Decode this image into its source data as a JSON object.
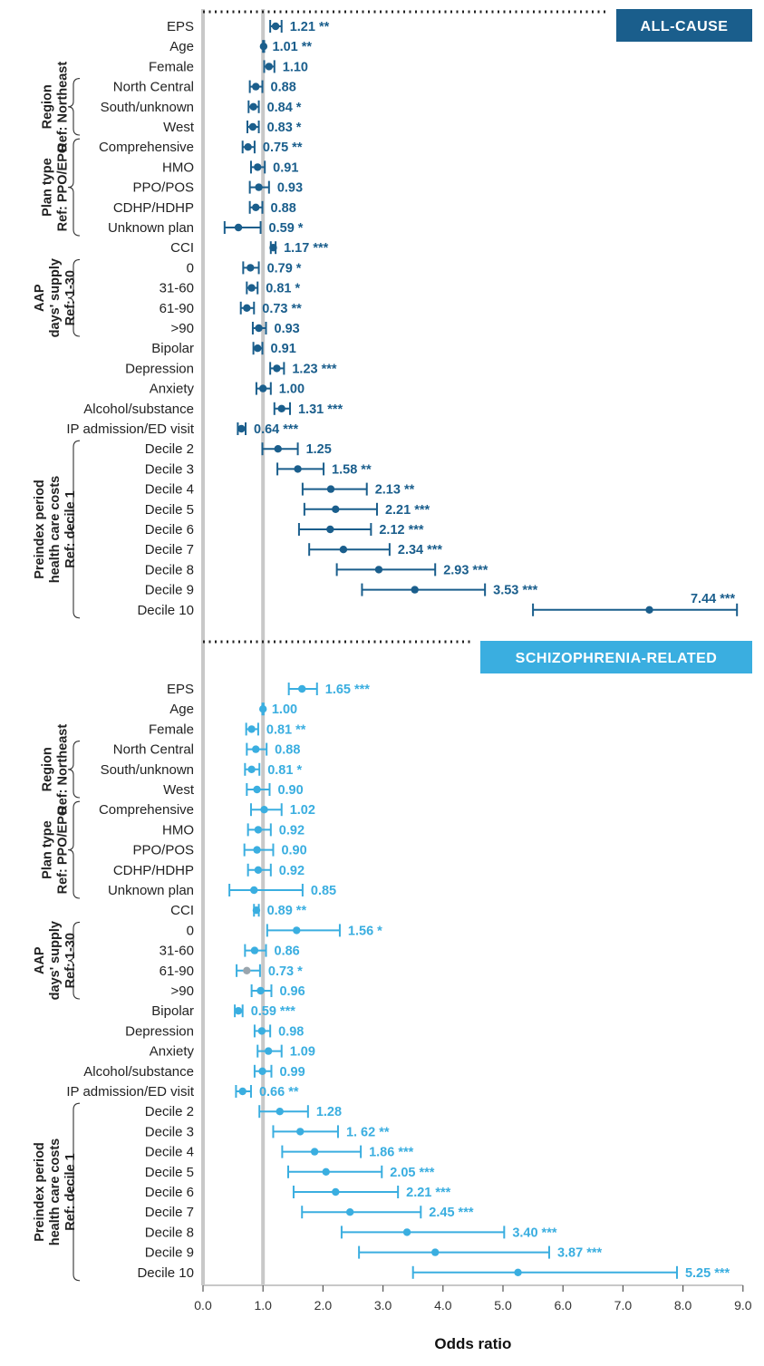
{
  "chart_data": {
    "type": "forest",
    "xlabel": "Odds ratio",
    "xlim": [
      0,
      9
    ],
    "xticks": [
      "0.0",
      "1.0",
      "2.0",
      "3.0",
      "4.0",
      "5.0",
      "6.0",
      "7.0",
      "8.0",
      "9.0"
    ],
    "reference_line": 1.0,
    "colors": {
      "all_cause": "#1a5e8c",
      "schizophrenia_related": "#3aaee0",
      "reference": "#c8c8c8",
      "highlight_point": "#9aa5ad"
    },
    "panels": [
      {
        "title": "ALL-CAUSE",
        "color": "#1a5e8c",
        "groups": [
          {
            "lines": [
              "Region",
              "Ref: Northeast"
            ],
            "first": 3,
            "last": 5
          },
          {
            "lines": [
              "Plan type",
              "Ref: PPO/EPO"
            ],
            "first": 6,
            "last": 10
          },
          {
            "lines": [
              "AAP",
              "days' supply",
              "Ref: 1-30"
            ],
            "first": 12,
            "last": 15
          },
          {
            "lines": [
              "Preindex period",
              "health care costs",
              "Ref: decile 1"
            ],
            "first": 21,
            "last": 29
          }
        ],
        "rows": [
          {
            "label": "EPS",
            "or": 1.21,
            "lo": 1.12,
            "hi": 1.31,
            "text": "1.21 **"
          },
          {
            "label": "Age",
            "or": 1.01,
            "lo": 1.0,
            "hi": 1.02,
            "text": "1.01 **"
          },
          {
            "label": "Female",
            "or": 1.1,
            "lo": 1.02,
            "hi": 1.19,
            "text": "1.10"
          },
          {
            "label": "North Central",
            "or": 0.88,
            "lo": 0.78,
            "hi": 0.99,
            "text": "0.88"
          },
          {
            "label": "South/unknown",
            "or": 0.84,
            "lo": 0.76,
            "hi": 0.93,
            "text": "0.84 *"
          },
          {
            "label": "West",
            "or": 0.83,
            "lo": 0.74,
            "hi": 0.93,
            "text": "0.83 *"
          },
          {
            "label": "Comprehensive",
            "or": 0.75,
            "lo": 0.66,
            "hi": 0.86,
            "text": "0.75 **"
          },
          {
            "label": "HMO",
            "or": 0.91,
            "lo": 0.8,
            "hi": 1.03,
            "text": "0.91"
          },
          {
            "label": "PPO/POS",
            "or": 0.93,
            "lo": 0.78,
            "hi": 1.1,
            "text": "0.93"
          },
          {
            "label": "CDHP/HDHP",
            "or": 0.88,
            "lo": 0.78,
            "hi": 0.99,
            "text": "0.88"
          },
          {
            "label": "Unknown plan",
            "or": 0.59,
            "lo": 0.36,
            "hi": 0.96,
            "text": "0.59 *"
          },
          {
            "label": "CCI",
            "or": 1.17,
            "lo": 1.13,
            "hi": 1.21,
            "text": "1.17 ***"
          },
          {
            "label": "0",
            "or": 0.79,
            "lo": 0.67,
            "hi": 0.93,
            "text": "0.79 *"
          },
          {
            "label": "31-60",
            "or": 0.81,
            "lo": 0.73,
            "hi": 0.91,
            "text": "0.81 *"
          },
          {
            "label": "61-90",
            "or": 0.73,
            "lo": 0.63,
            "hi": 0.85,
            "text": "0.73 **"
          },
          {
            "label": ">90",
            "or": 0.93,
            "lo": 0.83,
            "hi": 1.05,
            "text": "0.93"
          },
          {
            "label": "Bipolar",
            "or": 0.91,
            "lo": 0.84,
            "hi": 0.99,
            "text": "0.91"
          },
          {
            "label": "Depression",
            "or": 1.23,
            "lo": 1.12,
            "hi": 1.35,
            "text": "1.23 ***"
          },
          {
            "label": "Anxiety",
            "or": 1.0,
            "lo": 0.89,
            "hi": 1.13,
            "text": "1.00"
          },
          {
            "label": "Alcohol/substance",
            "or": 1.31,
            "lo": 1.19,
            "hi": 1.45,
            "text": "1.31 ***"
          },
          {
            "label": "IP admission/ED visit",
            "or": 0.64,
            "lo": 0.58,
            "hi": 0.71,
            "text": "0.64 ***"
          },
          {
            "label": "Decile 2",
            "or": 1.25,
            "lo": 0.99,
            "hi": 1.58,
            "text": "1.25"
          },
          {
            "label": "Decile 3",
            "or": 1.58,
            "lo": 1.24,
            "hi": 2.01,
            "text": "1.58 **"
          },
          {
            "label": "Decile 4",
            "or": 2.13,
            "lo": 1.66,
            "hi": 2.73,
            "text": "2.13 **"
          },
          {
            "label": "Decile 5",
            "or": 2.21,
            "lo": 1.69,
            "hi": 2.9,
            "text": "2.21 ***"
          },
          {
            "label": "Decile 6",
            "or": 2.12,
            "lo": 1.6,
            "hi": 2.8,
            "text": "2.12 ***"
          },
          {
            "label": "Decile 7",
            "or": 2.34,
            "lo": 1.77,
            "hi": 3.11,
            "text": "2.34 ***"
          },
          {
            "label": "Decile 8",
            "or": 2.93,
            "lo": 2.23,
            "hi": 3.87,
            "text": "2.93 ***"
          },
          {
            "label": "Decile 9",
            "or": 3.53,
            "lo": 2.65,
            "hi": 4.7,
            "text": "3.53 ***"
          },
          {
            "label": "Decile 10",
            "or": 7.44,
            "lo": 5.5,
            "hi": 8.9,
            "text": "7.44 ***"
          }
        ]
      },
      {
        "title": "SCHIZOPHRENIA-RELATED",
        "color": "#3aaee0",
        "groups": [
          {
            "lines": [
              "Region",
              "Ref: Northeast"
            ],
            "first": 3,
            "last": 5
          },
          {
            "lines": [
              "Plan type",
              "Ref: PPO/EPO"
            ],
            "first": 6,
            "last": 10
          },
          {
            "lines": [
              "AAP",
              "days' supply",
              "Ref: 1-30"
            ],
            "first": 12,
            "last": 15
          },
          {
            "lines": [
              "Preindex period",
              "health care costs",
              "Ref: decile 1"
            ],
            "first": 21,
            "last": 29
          }
        ],
        "rows": [
          {
            "label": "EPS",
            "or": 1.65,
            "lo": 1.43,
            "hi": 1.9,
            "text": "1.65 ***"
          },
          {
            "label": "Age",
            "or": 1.0,
            "lo": 0.99,
            "hi": 1.01,
            "text": "1.00"
          },
          {
            "label": "Female",
            "or": 0.81,
            "lo": 0.72,
            "hi": 0.92,
            "text": "0.81 **"
          },
          {
            "label": "North Central",
            "or": 0.88,
            "lo": 0.73,
            "hi": 1.06,
            "text": "0.88"
          },
          {
            "label": "South/unknown",
            "or": 0.81,
            "lo": 0.7,
            "hi": 0.94,
            "text": "0.81 *"
          },
          {
            "label": "West",
            "or": 0.9,
            "lo": 0.73,
            "hi": 1.11,
            "text": "0.90"
          },
          {
            "label": "Comprehensive",
            "or": 1.02,
            "lo": 0.8,
            "hi": 1.31,
            "text": "1.02"
          },
          {
            "label": "HMO",
            "or": 0.92,
            "lo": 0.75,
            "hi": 1.13,
            "text": "0.92"
          },
          {
            "label": "PPO/POS",
            "or": 0.9,
            "lo": 0.69,
            "hi": 1.17,
            "text": "0.90"
          },
          {
            "label": "CDHP/HDHP",
            "or": 0.92,
            "lo": 0.75,
            "hi": 1.13,
            "text": "0.92"
          },
          {
            "label": "Unknown plan",
            "or": 0.85,
            "lo": 0.44,
            "hi": 1.66,
            "text": "0.85"
          },
          {
            "label": "CCI",
            "or": 0.89,
            "lo": 0.85,
            "hi": 0.93,
            "text": "0.89 **"
          },
          {
            "label": "0",
            "or": 1.56,
            "lo": 1.07,
            "hi": 2.28,
            "text": "1.56 *"
          },
          {
            "label": "31-60",
            "or": 0.86,
            "lo": 0.7,
            "hi": 1.05,
            "text": "0.86"
          },
          {
            "label": "61-90",
            "or": 0.73,
            "lo": 0.56,
            "hi": 0.95,
            "text": "0.73 *",
            "highlight": true
          },
          {
            "label": ">90",
            "or": 0.96,
            "lo": 0.81,
            "hi": 1.14,
            "text": "0.96"
          },
          {
            "label": "Bipolar",
            "or": 0.59,
            "lo": 0.53,
            "hi": 0.66,
            "text": "0.59 ***"
          },
          {
            "label": "Depression",
            "or": 0.98,
            "lo": 0.86,
            "hi": 1.12,
            "text": "0.98"
          },
          {
            "label": "Anxiety",
            "or": 1.09,
            "lo": 0.91,
            "hi": 1.31,
            "text": "1.09"
          },
          {
            "label": "Alcohol/substance",
            "or": 0.99,
            "lo": 0.86,
            "hi": 1.14,
            "text": "0.99"
          },
          {
            "label": "IP admission/ED visit",
            "or": 0.66,
            "lo": 0.55,
            "hi": 0.8,
            "text": "0.66 **"
          },
          {
            "label": "Decile 2",
            "or": 1.28,
            "lo": 0.94,
            "hi": 1.75,
            "text": "1.28"
          },
          {
            "label": "Decile 3",
            "or": 1.62,
            "lo": 1.17,
            "hi": 2.25,
            "text": "1. 62 **"
          },
          {
            "label": "Decile 4",
            "or": 1.86,
            "lo": 1.32,
            "hi": 2.63,
            "text": "1.86 ***"
          },
          {
            "label": "Decile 5",
            "or": 2.05,
            "lo": 1.42,
            "hi": 2.98,
            "text": "2.05 ***"
          },
          {
            "label": "Decile 6",
            "or": 2.21,
            "lo": 1.51,
            "hi": 3.25,
            "text": "2.21 ***"
          },
          {
            "label": "Decile 7",
            "or": 2.45,
            "lo": 1.65,
            "hi": 3.63,
            "text": "2.45 ***"
          },
          {
            "label": "Decile 8",
            "or": 3.4,
            "lo": 2.31,
            "hi": 5.02,
            "text": "3.40 ***"
          },
          {
            "label": "Decile 9",
            "or": 3.87,
            "lo": 2.6,
            "hi": 5.77,
            "text": "3.87 ***"
          },
          {
            "label": "Decile 10",
            "or": 5.25,
            "lo": 3.5,
            "hi": 7.9,
            "text": "5.25 ***"
          }
        ]
      }
    ]
  }
}
